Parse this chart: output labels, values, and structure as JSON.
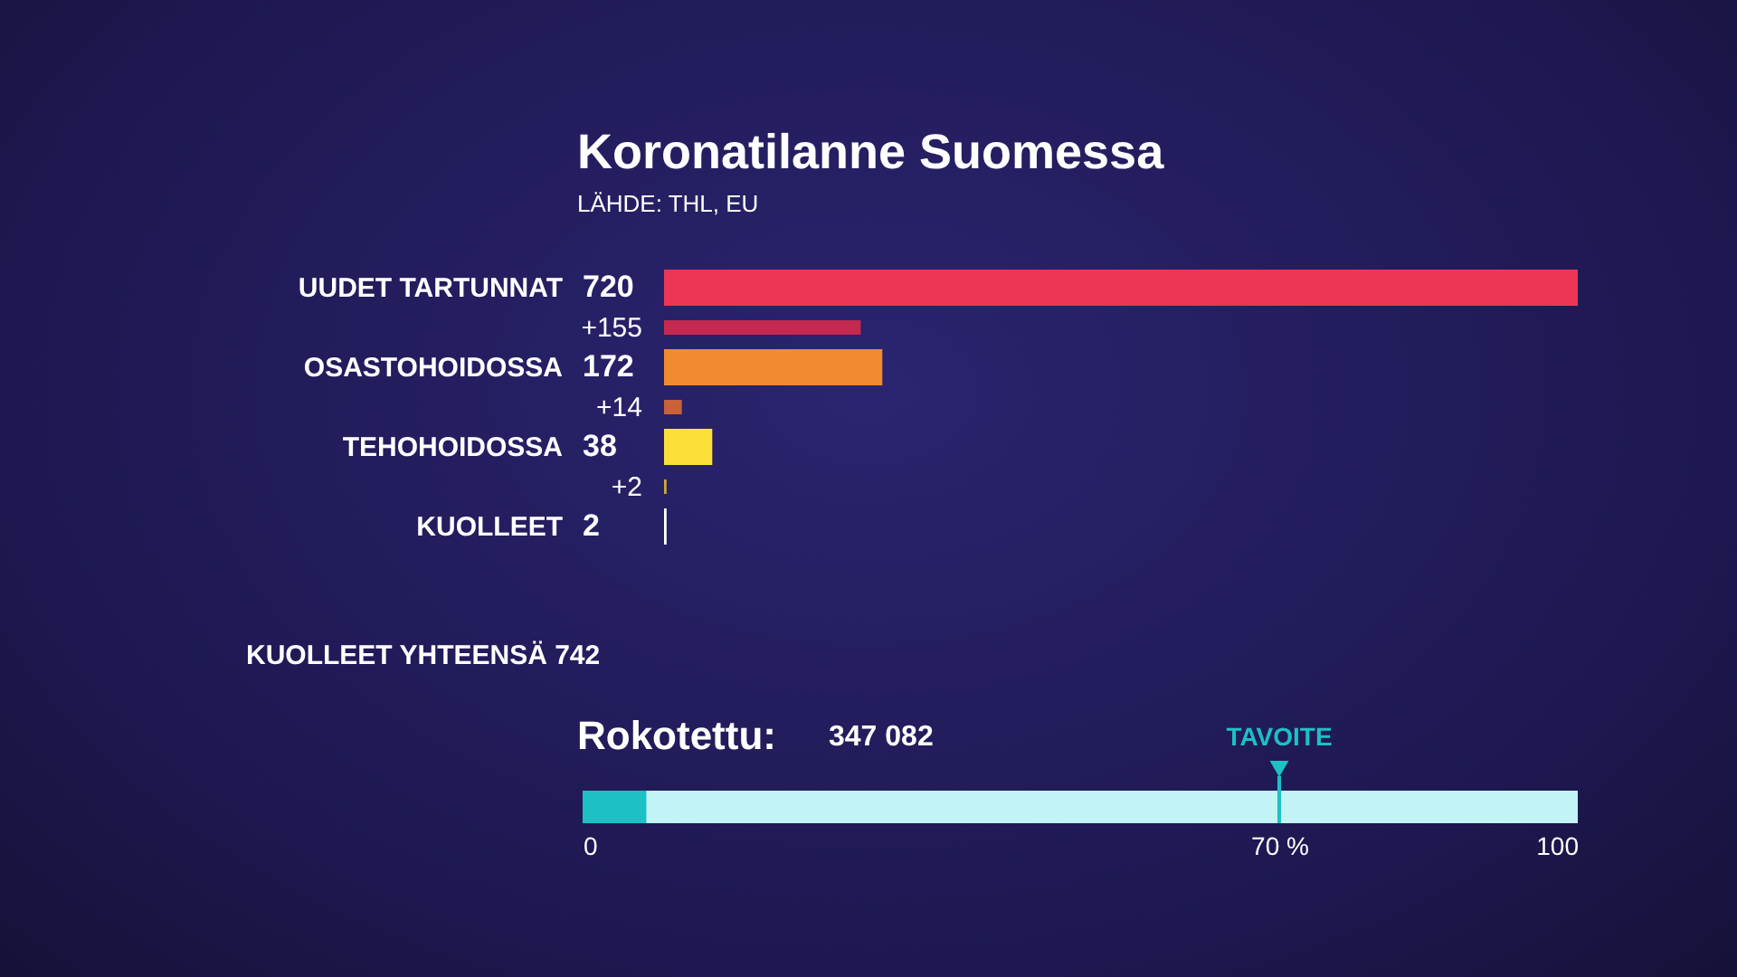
{
  "chart_data": [
    {
      "type": "bar",
      "orientation": "horizontal",
      "title": "Koronatilanne Suomessa",
      "categories": [
        "UUDET TARTUNNAT",
        "OSASTOHOIDOSSA",
        "TEHOHOIDOSSA",
        "KUOLLEET"
      ],
      "data_labels": true,
      "series": [
        {
          "values": [
            720,
            172,
            38,
            2
          ],
          "colors": [
            "#ef3555",
            "#f28a32",
            "#fbe03a",
            "#ffffff"
          ]
        },
        {
          "values": [
            155,
            14,
            2,
            null
          ],
          "colors": [
            "#c42a50",
            "#c8623a",
            "#c9a936",
            null
          ],
          "value_labels": [
            "+155",
            "+14",
            "+2",
            null
          ]
        }
      ],
      "annotations": [
        "LÄHDE: THL, EU",
        "KUOLLEET YHTEENSÄ 742"
      ]
    },
    {
      "type": "bar",
      "orientation": "horizontal",
      "title": "Rokotettu:",
      "categories": [
        null
      ],
      "values": [
        6.4
      ],
      "color": "#1cc0c5",
      "xlim": [
        0,
        100
      ],
      "xticks": [
        0,
        {
          "value": 70,
          "label": "70 %"
        },
        100
      ],
      "ref_lines": [
        {
          "axis": "x",
          "value": 70,
          "label": "TAVOITE",
          "color": "#1cc0c5"
        }
      ],
      "annotations": [
        "347 082"
      ]
    }
  ]
}
